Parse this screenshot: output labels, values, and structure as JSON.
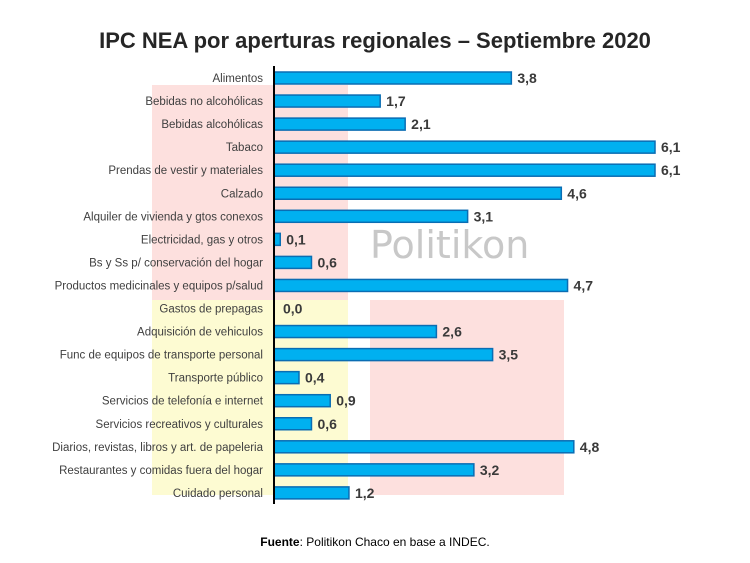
{
  "chart_data": {
    "type": "bar",
    "orientation": "horizontal",
    "title": "IPC NEA por aperturas regionales – Septiembre 2020",
    "categories": [
      "Alimentos",
      "Bebidas no alcohólicas",
      "Bebidas alcohólicas",
      "Tabaco",
      "Prendas de vestir y materiales",
      "Calzado",
      "Alquiler de vivienda y gtos conexos",
      "Electricidad, gas y otros",
      "Bs y Ss p/ conservación del hogar",
      "Productos medicinales y equipos p/salud",
      "Gastos de prepagas",
      "Adquisición de vehiculos",
      "Func de equipos de transporte personal",
      "Transporte público",
      "Servicios  de telefonía e internet",
      "Servicios recreativos y culturales",
      "Diarios, revistas, libros y art. de papeleria",
      "Restaurantes y comidas fuera del hogar",
      "Cuidado personal"
    ],
    "values": [
      3.8,
      1.7,
      2.1,
      6.1,
      6.1,
      4.6,
      3.1,
      0.1,
      0.6,
      4.7,
      0.0,
      2.6,
      3.5,
      0.4,
      0.9,
      0.6,
      4.8,
      3.2,
      1.2
    ],
    "labels": [
      "3,8",
      "1,7",
      "2,1",
      "6,1",
      "6,1",
      "4,6",
      "3,1",
      "0,1",
      "0,6",
      "4,7",
      "0,0",
      "2,6",
      "3,5",
      "0,4",
      "0,9",
      "0,6",
      "4,8",
      "3,2",
      "1,2"
    ],
    "xlim": [
      0,
      6.1
    ],
    "grid": false,
    "bar_color": "#00b0f0",
    "bar_border": "#0a6db3"
  },
  "watermark": "Politikon",
  "source": {
    "label": "Fuente",
    "text": ": Politikon Chaco en base a INDEC."
  }
}
